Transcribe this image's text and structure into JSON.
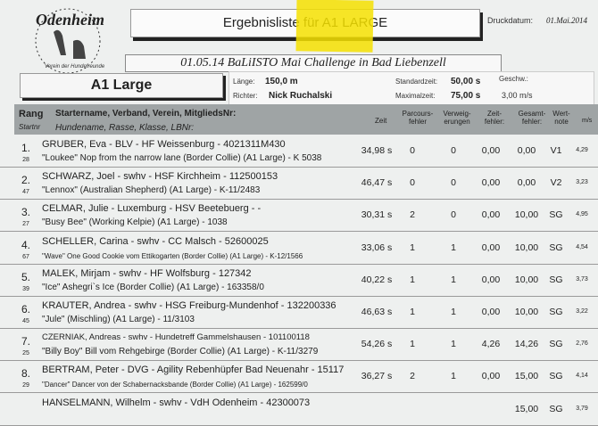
{
  "header": {
    "logo_text": "Odenheim VdH e.V. Verein der Hundefreunde",
    "title": "Ergebnisliste für A1 LARGE",
    "print_date_label": "Druckdatum:",
    "print_date": "01.Mai.2014",
    "event": "01.05.14 BaLiISTO Mai Challenge in Bad Liebenzell",
    "class_name": "A1 Large"
  },
  "info": {
    "laenge_label": "Länge:",
    "laenge": "150,0 m",
    "richter_label": "Richter:",
    "richter": "Nick Ruchalski",
    "standardzeit_label": "Standardzeit:",
    "standardzeit": "50,00 s",
    "maximalzeit_label": "Maximalzeit:",
    "maximalzeit": "75,00 s",
    "geschw_label": "Geschw.:",
    "geschw": "3,00 m/s"
  },
  "table": {
    "columns": {
      "rang": "Rang",
      "startnr": "Startnr",
      "starter": "Startername, Verband, Verein, MitgliedsNr:",
      "hund": "Hundename, Rasse, Klasse, LBNr:",
      "zeit": "Zeit",
      "parcours_1": "Parcours-",
      "parcours_2": "fehler",
      "verweig_1": "Verweig-",
      "verweig_2": "erungen",
      "zeitf_1": "Zeit-",
      "zeitf_2": "fehler:",
      "gesamt_1": "Gesamt-",
      "gesamt_2": "fehler:",
      "wert_1": "Wert-",
      "wert_2": "note",
      "ms": "m/s"
    },
    "rows": [
      {
        "rang": "1.",
        "startnr": "28",
        "starter": "GRUBER, Eva - BLV - HF Weissenburg - 4021311M430",
        "hund": "\"Loukee\" Nop from the narrow lane (Border Collie) (A1 Large) - K 5038",
        "zeit": "34,98 s",
        "parcours": "0",
        "verweig": "0",
        "zeitfehler": "0,00",
        "gesamt": "0,00",
        "wert": "V1",
        "ms": "4,29"
      },
      {
        "rang": "2.",
        "startnr": "47",
        "starter": "SCHWARZ, Joel - swhv - HSF Kirchheim - 112500153",
        "hund": "\"Lennox\"  (Australian Shepherd) (A1 Large) - K-11/2483",
        "zeit": "46,47 s",
        "parcours": "0",
        "verweig": "0",
        "zeitfehler": "0,00",
        "gesamt": "0,00",
        "wert": "V2",
        "ms": "3,23"
      },
      {
        "rang": "3.",
        "startnr": "27",
        "starter": "CELMAR, Julie - Luxemburg - HSV Beetebuerg - -",
        "hund": "\"Busy Bee\"  (Working Kelpie) (A1 Large) - 1038",
        "zeit": "30,31 s",
        "parcours": "2",
        "verweig": "0",
        "zeitfehler": "0,00",
        "gesamt": "10,00",
        "wert": "SG",
        "ms": "4,95"
      },
      {
        "rang": "4.",
        "startnr": "67",
        "starter": "SCHELLER, Carina - swhv - CC Malsch - 52600025",
        "hund": "\"Wave\" One Good Cookie vom Ettikogarten (Border Collie) (A1 Large) - K-12/1566",
        "zeit": "33,06 s",
        "parcours": "1",
        "verweig": "1",
        "zeitfehler": "0,00",
        "gesamt": "10,00",
        "wert": "SG",
        "ms": "4,54"
      },
      {
        "rang": "5.",
        "startnr": "39",
        "starter": "MALEK, Mirjam - swhv - HF Wolfsburg - 127342",
        "hund": "\"Ice\" Ashegri`s Ice (Border Collie) (A1 Large) - 163358/0",
        "zeit": "40,22 s",
        "parcours": "1",
        "verweig": "1",
        "zeitfehler": "0,00",
        "gesamt": "10,00",
        "wert": "SG",
        "ms": "3,73"
      },
      {
        "rang": "6.",
        "startnr": "45",
        "starter": "KRAUTER, Andrea - swhv - HSG Freiburg-Mundenhof - 132200336",
        "hund": "\"Jule\"  (Mischling) (A1 Large) - 11/3103",
        "zeit": "46,63 s",
        "parcours": "1",
        "verweig": "1",
        "zeitfehler": "0,00",
        "gesamt": "10,00",
        "wert": "SG",
        "ms": "3,22"
      },
      {
        "rang": "7.",
        "startnr": "25",
        "starter": "CZERNIAK, Andreas - swhv - Hundetreff Gammelshausen - 101100118",
        "hund": "\"Billy Boy\" Bill vom Rehgebirge (Border Collie) (A1 Large) - K-11/3279",
        "zeit": "54,26 s",
        "parcours": "1",
        "verweig": "1",
        "zeitfehler": "4,26",
        "gesamt": "14,26",
        "wert": "SG",
        "ms": "2,76"
      },
      {
        "rang": "8.",
        "startnr": "29",
        "starter": "BERTRAM, Peter - DVG - Agility Rebenhüpfer Bad Neuenahr - 15117",
        "hund": "\"Dancer\" Dancer von der Schabernacksbande (Border Collie) (A1 Large) - 162599/0",
        "zeit": "36,27 s",
        "parcours": "2",
        "verweig": "1",
        "zeitfehler": "0,00",
        "gesamt": "15,00",
        "wert": "SG",
        "ms": "4,14"
      },
      {
        "rang": "",
        "startnr": "",
        "starter": "HANSELMANN, Wilhelm - swhv - VdH Odenheim - 42300073",
        "hund": "",
        "zeit": "",
        "parcours": "",
        "verweig": "",
        "zeitfehler": "",
        "gesamt": "15,00",
        "wert": "SG",
        "ms": "3,79"
      }
    ]
  }
}
